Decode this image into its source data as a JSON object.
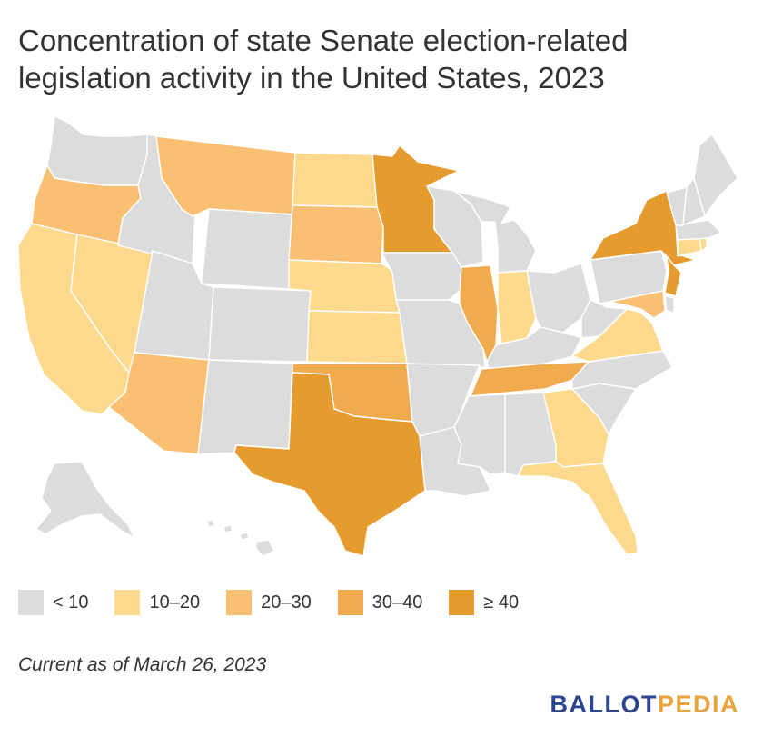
{
  "title": "Concentration of state Senate election-related legislation activity in the United States, 2023",
  "legend": [
    {
      "label": "< 10",
      "color": "#dcdcdc"
    },
    {
      "label": "10–20",
      "color": "#fcd98d"
    },
    {
      "label": "20–30",
      "color": "#f9bf72"
    },
    {
      "label": "30–40",
      "color": "#f0ab4f"
    },
    {
      "label": "≥ 40",
      "color": "#e69b2f"
    }
  ],
  "map_data": {
    "categories": [
      "< 10",
      "10–20",
      "20–30",
      "30–40",
      "≥ 40"
    ],
    "states": {
      "WA": "< 10",
      "OR": "20–30",
      "CA": "10–20",
      "NV": "10–20",
      "ID": "< 10",
      "MT": "20–30",
      "WY": "< 10",
      "UT": "< 10",
      "AZ": "20–30",
      "CO": "< 10",
      "NM": "< 10",
      "ND": "10–20",
      "SD": "20–30",
      "NE": "10–20",
      "KS": "10–20",
      "OK": "30–40",
      "TX": "≥ 40",
      "MN": "≥ 40",
      "IA": "< 10",
      "MO": "< 10",
      "AR": "< 10",
      "LA": "< 10",
      "WI": "< 10",
      "IL": "30–40",
      "MI": "< 10",
      "IN": "10–20",
      "OH": "< 10",
      "KY": "< 10",
      "TN": "30–40",
      "MS": "< 10",
      "AL": "< 10",
      "GA": "10–20",
      "FL": "10–20",
      "SC": "< 10",
      "NC": "< 10",
      "VA": "10–20",
      "WV": "< 10",
      "PA": "< 10",
      "NY": "≥ 40",
      "NJ": "≥ 40",
      "DE": "< 10",
      "MD": "20–30",
      "CT": "10–20",
      "RI": "10–20",
      "MA": "< 10",
      "VT": "< 10",
      "NH": "< 10",
      "ME": "< 10",
      "AK": "< 10",
      "HI": "< 10"
    }
  },
  "footnote": "Current as of March 26, 2023",
  "brand": {
    "part1": "BALLOT",
    "part2": "PEDIA",
    "color1": "#2b4590",
    "color2": "#e8a33a"
  }
}
